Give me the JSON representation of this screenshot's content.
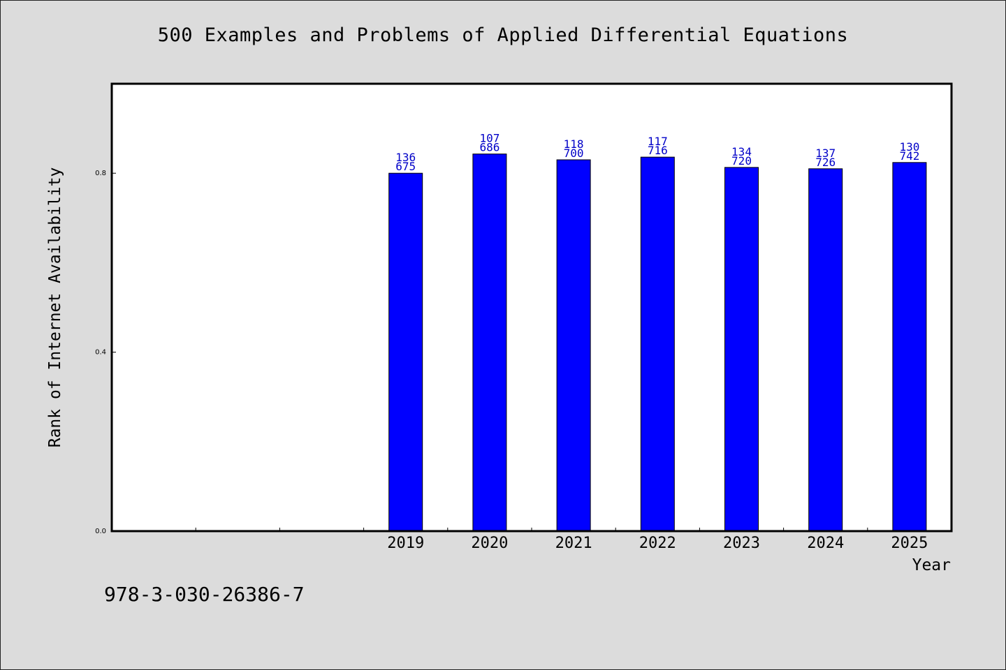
{
  "chart_data": {
    "type": "bar",
    "title": "500 Examples and Problems of Applied Differential Equations",
    "xlabel": "Year",
    "ylabel": "Rank of Internet Availability",
    "categories": [
      "",
      "",
      "",
      "2019",
      "2020",
      "2021",
      "2022",
      "2023",
      "2024",
      "2025"
    ],
    "values": [
      null,
      null,
      null,
      0.8,
      0.843,
      0.83,
      0.836,
      0.813,
      0.81,
      0.824
    ],
    "data_labels": [
      null,
      null,
      null,
      [
        "136",
        "675"
      ],
      [
        "107",
        "686"
      ],
      [
        "118",
        "700"
      ],
      [
        "117",
        "716"
      ],
      [
        "134",
        "720"
      ],
      [
        "137",
        "726"
      ],
      [
        "130",
        "742"
      ]
    ],
    "ylim": [
      0,
      1.0
    ],
    "yticks": [
      "0.0",
      "0.4",
      "0.8"
    ],
    "ytick_values": [
      0.0,
      0.4,
      0.8
    ],
    "grid": false,
    "legend": "none",
    "colors": {
      "bar_fill": "#0000ff",
      "bar_stroke": "#000000",
      "label_color": "#0000c8",
      "plot_bg": "#ffffff",
      "page_bg": "#dcdcdc"
    }
  },
  "footer": {
    "isbn": "978-3-030-26386-7"
  }
}
